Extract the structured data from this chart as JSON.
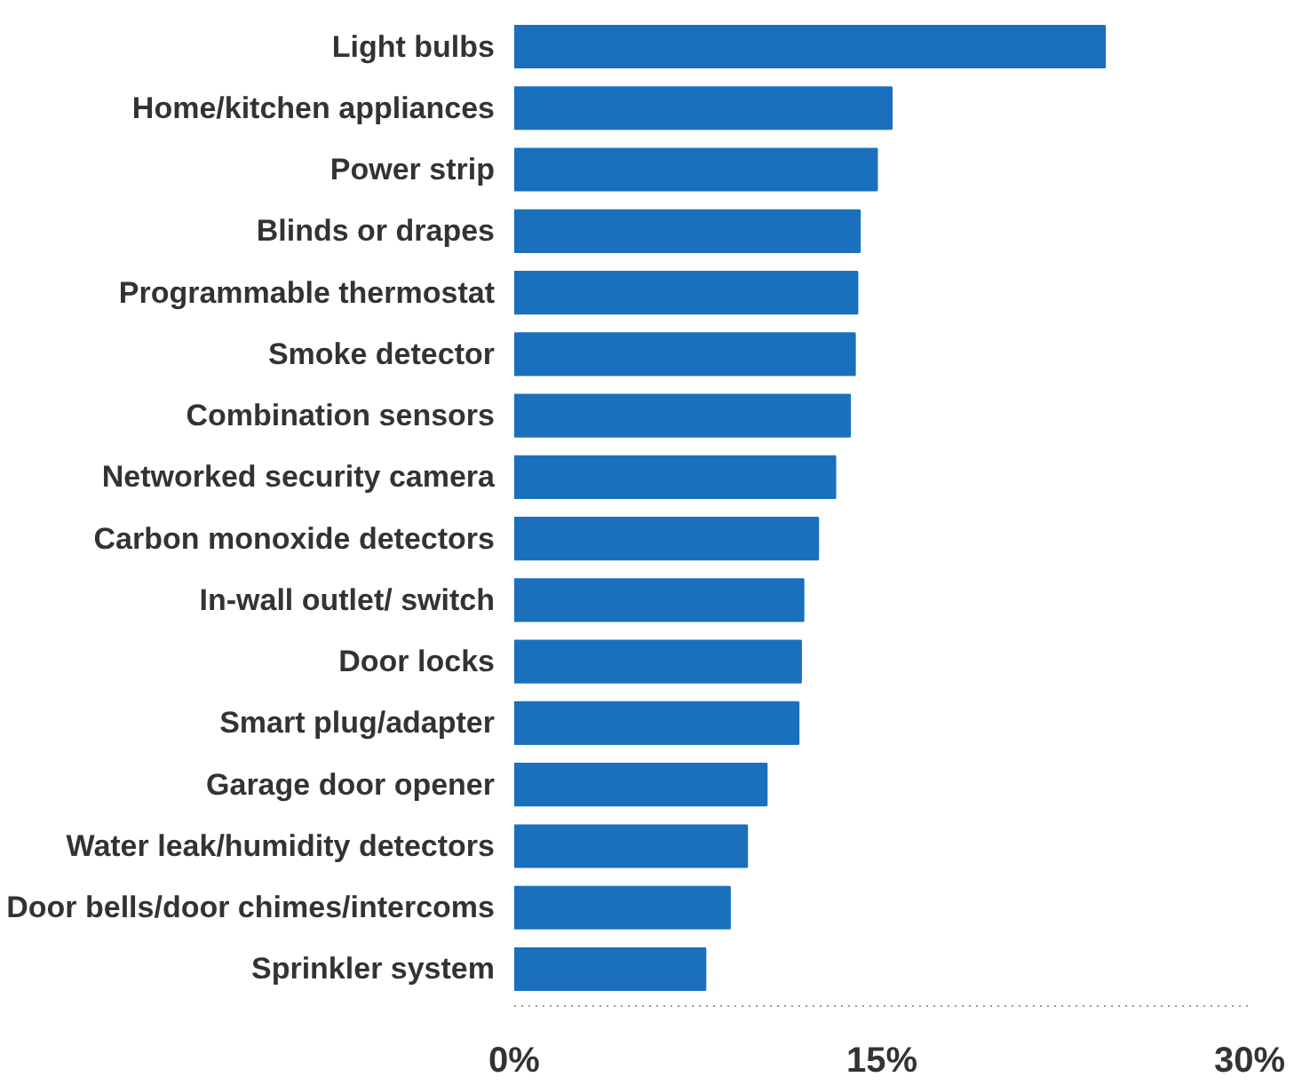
{
  "chart_data": {
    "type": "bar",
    "orientation": "horizontal",
    "categories": [
      "Light bulbs",
      "Home/kitchen appliances",
      "Power strip",
      "Blinds or drapes",
      "Programmable thermostat",
      "Smoke detector",
      "Combination sensors",
      "Networked security camera",
      "Carbon monoxide detectors",
      "In-wall outlet/ switch",
      "Door locks",
      "Smart plug/adapter",
      "Garage door opener",
      "Water leak/humidity detectors",
      "Door bells/door chimes/intercoms",
      "Sprinkler system"
    ],
    "values": [
      24.1,
      15.4,
      14.8,
      14.1,
      14.0,
      13.9,
      13.7,
      13.1,
      12.4,
      11.8,
      11.7,
      11.6,
      10.3,
      9.5,
      8.8,
      7.8
    ],
    "color": "#1a70bd",
    "xlim": [
      0,
      30
    ],
    "xticks": [
      {
        "value": 0,
        "label": "0%"
      },
      {
        "value": 15,
        "label": "15%"
      },
      {
        "value": 30,
        "label": "30%"
      }
    ]
  }
}
